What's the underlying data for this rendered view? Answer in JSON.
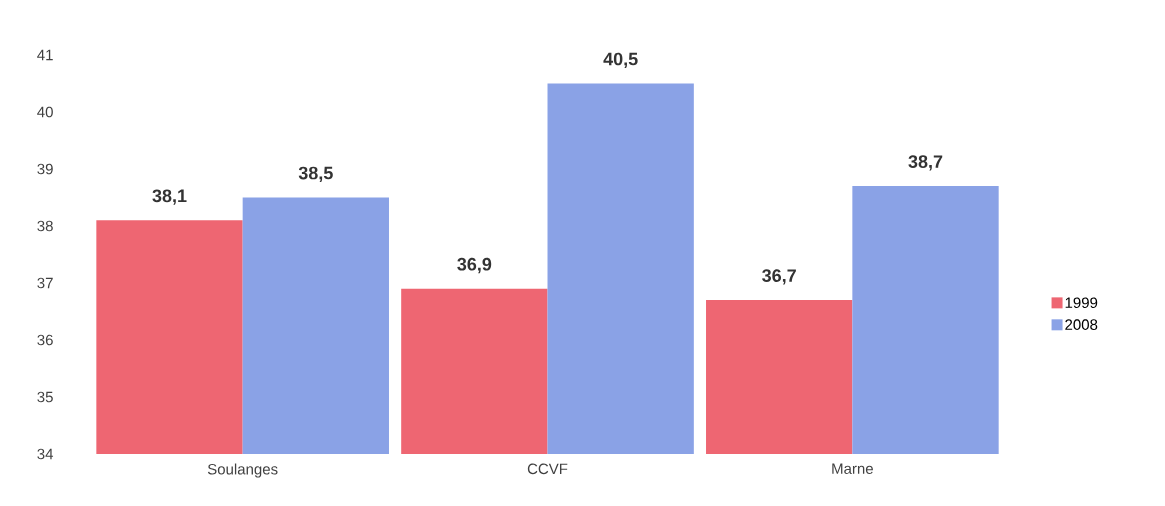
{
  "chart_data": {
    "type": "bar",
    "categories": [
      "Soulanges",
      "CCVF",
      "Marne"
    ],
    "series": [
      {
        "name": "1999",
        "color": "#ee6672",
        "values": [
          38.1,
          36.9,
          36.7
        ],
        "value_labels": [
          "38,1",
          "36,9",
          "36,7"
        ]
      },
      {
        "name": "2008",
        "color": "#8aa2e6",
        "values": [
          38.5,
          40.5,
          38.7
        ],
        "value_labels": [
          "38,5",
          "40,5",
          "38,7"
        ]
      }
    ],
    "ylim": [
      34,
      41
    ],
    "yticks": [
      34,
      35,
      36,
      37,
      38,
      39,
      40,
      41
    ],
    "grid": false,
    "legend": "right"
  }
}
